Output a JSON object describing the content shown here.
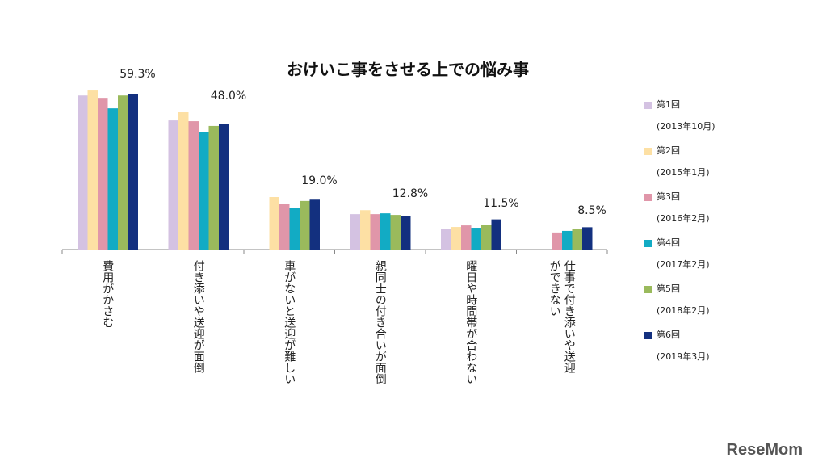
{
  "chart_data": {
    "type": "bar",
    "title": "おけいこ事をさせる上での悩み事",
    "categories": [
      "費用がかさむ",
      "付き添いや送迎が面倒",
      "車がないと送迎が難しい",
      "親同士の付き合いが面倒",
      "曜日や時間帯が合わない",
      "仕事で付き添いや送迎ができない"
    ],
    "series": [
      {
        "name": "第1回",
        "date": "(2013年10月)",
        "color": "#d4c2e2",
        "values": [
          58.7,
          49.2,
          null,
          13.5,
          8.0,
          null
        ]
      },
      {
        "name": "第2回",
        "date": "(2015年1月)",
        "color": "#fde0a4",
        "values": [
          60.6,
          52.3,
          20.0,
          15.0,
          8.6,
          null
        ]
      },
      {
        "name": "第3回",
        "date": "(2016年2月)",
        "color": "#e096a9",
        "values": [
          57.8,
          48.9,
          17.5,
          13.5,
          9.2,
          6.5
        ]
      },
      {
        "name": "第4回",
        "date": "(2017年2月)",
        "color": "#12abc4",
        "values": [
          53.8,
          44.9,
          16.0,
          13.8,
          8.3,
          7.1
        ]
      },
      {
        "name": "第5回",
        "date": "(2018年2月)",
        "color": "#9aba5c",
        "values": [
          58.7,
          47.1,
          18.5,
          13.2,
          9.5,
          7.7
        ]
      },
      {
        "name": "第6回",
        "date": "(2019年3月)",
        "color": "#13307f",
        "values": [
          59.3,
          48.0,
          19.0,
          12.8,
          11.5,
          8.5
        ]
      }
    ],
    "data_labels": [
      "59.3%",
      "48.0%",
      "19.0%",
      "12.8%",
      "11.5%",
      "8.5%"
    ],
    "ylim": [
      0,
      62
    ],
    "legend": "right"
  },
  "logo": "ReseMom"
}
